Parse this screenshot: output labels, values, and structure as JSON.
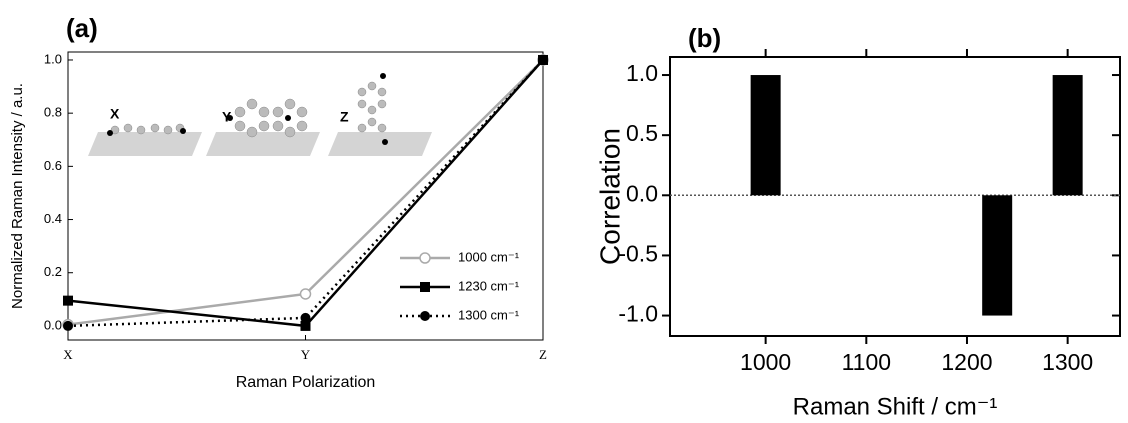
{
  "chart_data": [
    {
      "type": "line",
      "panel_label": "(a)",
      "xlabel": "Raman Polarization",
      "ylabel": "Normalized Raman Intensity / a.u.",
      "categories": [
        "X",
        "Y",
        "Z"
      ],
      "series": [
        {
          "name": "1000 cm⁻¹",
          "color": "#aaaaaa",
          "linestyle": "solid",
          "marker": "open-circle",
          "values": [
            0.005,
            0.12,
            1.0
          ]
        },
        {
          "name": "1230 cm⁻¹",
          "color": "#000000",
          "linestyle": "solid",
          "marker": "square",
          "values": [
            0.095,
            0.0,
            1.0
          ]
        },
        {
          "name": "1300 cm⁻¹",
          "color": "#000000",
          "linestyle": "dotted",
          "marker": "circle",
          "values": [
            0.0,
            0.03,
            1.0
          ]
        }
      ],
      "ylim": [
        -0.053,
        1.03
      ],
      "yticks": [
        {
          "value": 0,
          "label": "0.0"
        },
        0.2,
        0.4,
        0.6,
        0.8,
        {
          "value": 1,
          "label": "1.0"
        }
      ],
      "annotations": [
        "X",
        "Y",
        "Z"
      ],
      "legend": "lower-right"
    },
    {
      "type": "bar",
      "panel_label": "(b)",
      "xlabel": "Raman Shift / cm⁻¹",
      "ylabel": "Correlation",
      "x": [
        1000,
        1230,
        1300
      ],
      "values": [
        1.0,
        -1.0,
        1.0
      ],
      "color": "#000000",
      "xlim": [
        905,
        1352
      ],
      "xticks": [
        1000,
        1100,
        1200,
        1300
      ],
      "ylim": [
        -1.17,
        1.15
      ],
      "yticks": [
        {
          "value": -1,
          "label": "-1.0"
        },
        -0.5,
        {
          "value": 0,
          "label": "0.0"
        },
        0.5,
        {
          "value": 1,
          "label": "1.0"
        }
      ],
      "zero_line": true
    }
  ]
}
